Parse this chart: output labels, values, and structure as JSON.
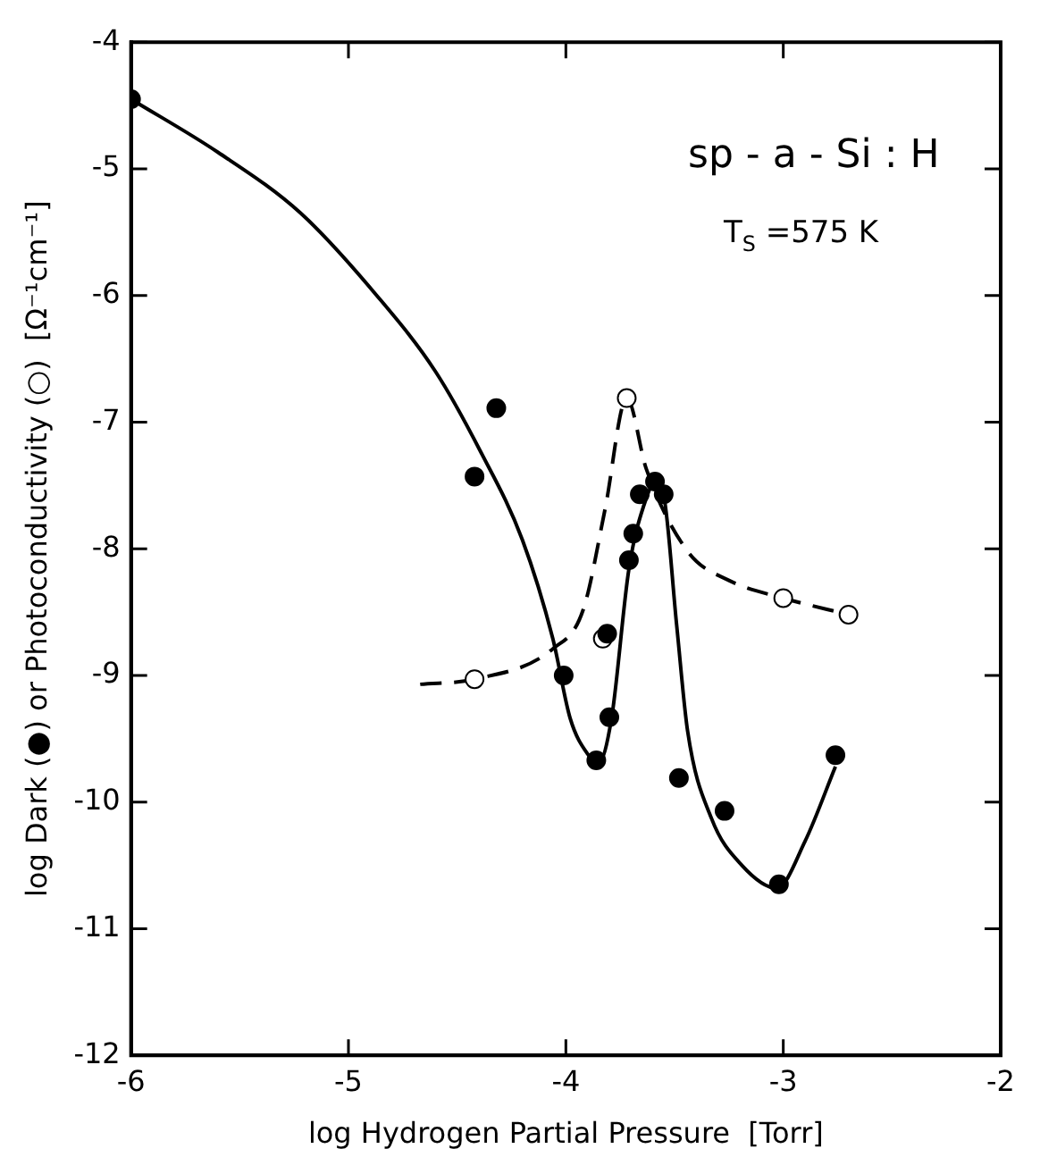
{
  "chart_data": {
    "type": "scatter",
    "xlabel": "log Hydrogen Partial Pressure  [Torr]",
    "ylabel": "log Dark (●) or Photoconductivity (○)  [Ω⁻¹cm⁻¹]",
    "annotations": [
      "sp - a - Si : H",
      "T$_{S}$ =575 K"
    ],
    "xlim": [
      -6,
      -2
    ],
    "xticks": [
      -6,
      -5,
      -4,
      -3,
      -2
    ],
    "ylim": [
      -12,
      -4
    ],
    "yticks": [
      -12,
      -11,
      -10,
      -9,
      -8,
      -7,
      -6,
      -5,
      -4
    ],
    "grid": false,
    "legend": false,
    "series": [
      {
        "type": "line",
        "color": "#000000",
        "line_style": "solid",
        "marker": "none",
        "x": [
          -6,
          -5.6,
          -5.22,
          -4.87,
          -4.6,
          -4.39,
          -4.2,
          -4.06,
          -3.98,
          -3.9,
          -3.85,
          -3.79,
          -3.71,
          -3.63,
          -3.59,
          -3.55,
          -3.49,
          -3.44,
          -3.33,
          -3.19,
          -3.03,
          -2.9,
          -2.76
        ],
        "values": [
          -4.45,
          -4.87,
          -5.35,
          -6.0,
          -6.6,
          -7.24,
          -7.93,
          -8.71,
          -9.34,
          -9.62,
          -9.69,
          -9.34,
          -8.16,
          -7.6,
          -7.48,
          -7.58,
          -8.61,
          -9.44,
          -10.13,
          -10.5,
          -10.68,
          -10.31,
          -9.72
        ]
      },
      {
        "type": "line",
        "color": "#000000",
        "line_style": "dashed",
        "marker": "none",
        "x": [
          -4.67,
          -4.42,
          -4.06,
          -3.92,
          -3.82,
          -3.72,
          -3.63,
          -3.44,
          -3.25,
          -3.0,
          -2.7
        ],
        "values": [
          -9.07,
          -9.03,
          -8.79,
          -8.48,
          -7.69,
          -6.81,
          -7.37,
          -8.02,
          -8.25,
          -8.39,
          -8.52
        ]
      },
      {
        "color": "#000000",
        "marker": "circle",
        "x": [
          -6,
          -4.42,
          -4.32,
          -4.01,
          -3.86,
          -3.81,
          -3.8,
          -3.71,
          -3.69,
          -3.66,
          -3.59,
          -3.55,
          -3.48,
          -3.27,
          -3.02,
          -2.76
        ],
        "values": [
          -4.45,
          -7.43,
          -6.89,
          -9.0,
          -9.67,
          -8.67,
          -9.33,
          -8.09,
          -7.88,
          -7.57,
          -7.47,
          -7.57,
          -9.81,
          -10.07,
          -10.65,
          -9.63
        ]
      },
      {
        "color": "#ffffff",
        "marker": "circle",
        "x": [
          -4.42,
          -3.83,
          -3.72,
          -3.0,
          -2.7
        ],
        "values": [
          -9.03,
          -8.71,
          -6.81,
          -8.39,
          -8.52
        ]
      }
    ]
  }
}
